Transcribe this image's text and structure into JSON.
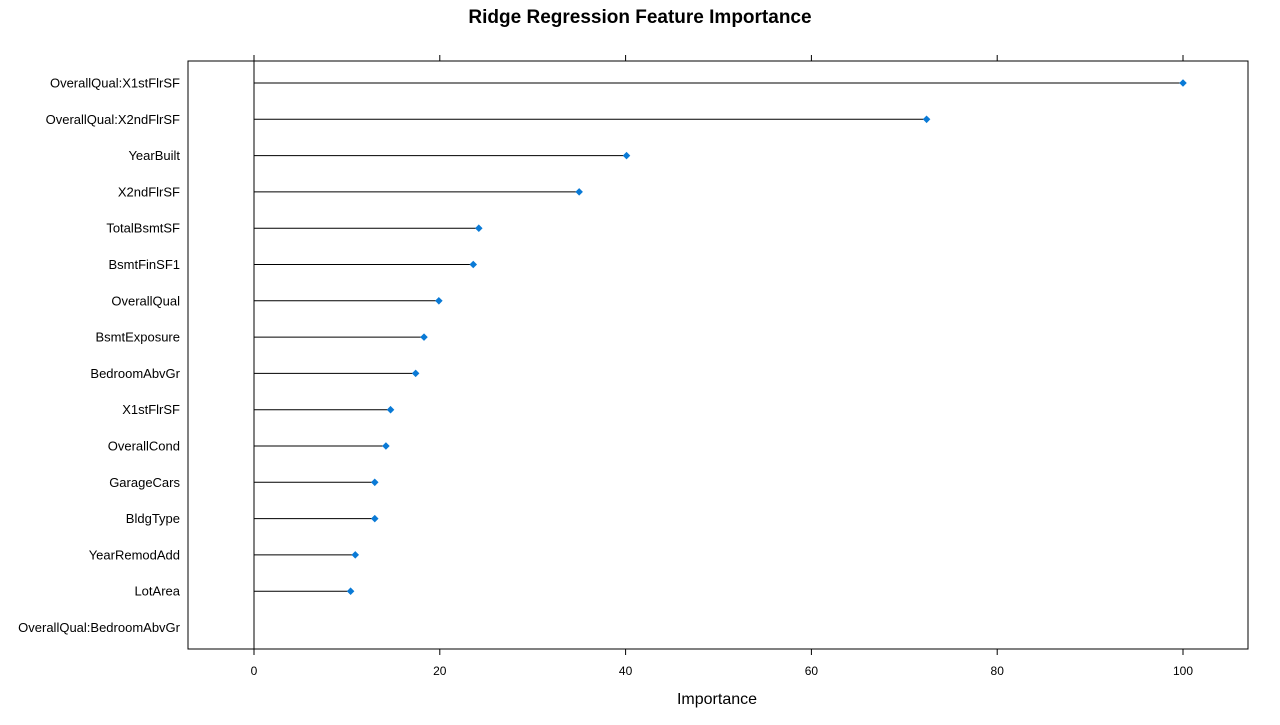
{
  "chart_data": {
    "type": "dotplot",
    "title": "Ridge Regression Feature Importance",
    "xlabel": "Importance",
    "ylabel": "",
    "xlim": [
      -7,
      107
    ],
    "xticks": [
      0,
      20,
      40,
      60,
      80,
      100
    ],
    "xtick_labels": [
      "0",
      "20",
      "40",
      "60",
      "80",
      "100"
    ],
    "categories": [
      "OverallQual:X1stFlrSF",
      "OverallQual:X2ndFlrSF",
      "YearBuilt",
      "X2ndFlrSF",
      "TotalBsmtSF",
      "BsmtFinSF1",
      "OverallQual",
      "BsmtExposure",
      "BedroomAbvGr",
      "X1stFlrSF",
      "OverallCond",
      "GarageCars",
      "BldgType",
      "YearRemodAdd",
      "LotArea",
      "OverallQual:BedroomAbvGr"
    ],
    "values": [
      100,
      72.4,
      40.1,
      35.0,
      24.2,
      23.6,
      19.9,
      18.3,
      17.4,
      14.7,
      14.2,
      13.0,
      13.0,
      10.9,
      10.4,
      0
    ],
    "grid": false,
    "legend": "none",
    "colors": {
      "point": "#0a7ad6",
      "line": "#000000",
      "frame": "#000000"
    }
  }
}
